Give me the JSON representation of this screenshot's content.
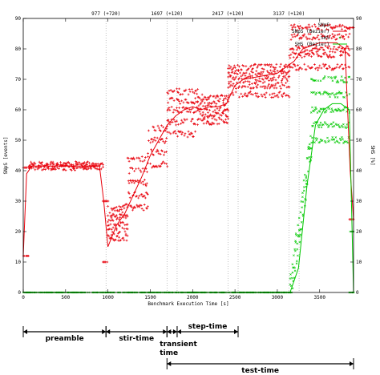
{
  "chart_data": {
    "type": "scatter",
    "title": "",
    "xlabel": "Benchmark Execution Time [s]",
    "ylabel": "SNpS [events]",
    "y2label": "SHS [%]",
    "xlim": [
      0,
      3900
    ],
    "ylim": [
      0,
      90
    ],
    "y2lim": [
      0,
      90
    ],
    "xticks": [
      0,
      500,
      1000,
      1500,
      2000,
      2500,
      3000,
      3500
    ],
    "yticks": [
      0,
      10,
      20,
      30,
      40,
      50,
      60,
      70,
      80,
      90
    ],
    "y2ticks": [
      0,
      10,
      20,
      30,
      40,
      50,
      60,
      70,
      80,
      90
    ],
    "grid": false,
    "legend_position": "top-right",
    "vertical_markers": [
      {
        "x": 977,
        "label": "977 (+720)"
      },
      {
        "x": 1697,
        "label": "1697 (+120)"
      },
      {
        "x": 2417,
        "label": "2417 (+120)"
      },
      {
        "x": 3137,
        "label": "3137 (+120)"
      }
    ],
    "series": [
      {
        "name": "SNpS",
        "color": "#e8000b",
        "marker": "plus",
        "segments": [
          {
            "x_start": 0,
            "x_end": 60,
            "levels": [
              12,
              41
            ]
          },
          {
            "x_start": 60,
            "x_end": 940,
            "levels": [
              41,
              41.5,
              42
            ]
          },
          {
            "x_start": 940,
            "x_end": 1000,
            "levels": [
              10,
              30
            ]
          },
          {
            "x_start": 1000,
            "x_end": 1230,
            "levels": [
              18,
              20,
              22,
              24,
              26,
              28
            ]
          },
          {
            "x_start": 1230,
            "x_end": 1470,
            "levels": [
              28,
              32,
              36,
              40,
              44
            ]
          },
          {
            "x_start": 1470,
            "x_end": 1700,
            "levels": [
              42,
              46,
              50,
              54
            ]
          },
          {
            "x_start": 1700,
            "x_end": 2060,
            "levels": [
              52,
              56,
              60,
              63,
              66
            ]
          },
          {
            "x_start": 2060,
            "x_end": 2420,
            "levels": [
              56,
              58,
              60,
              62,
              64
            ]
          },
          {
            "x_start": 2420,
            "x_end": 3140,
            "levels": [
              65,
              68,
              70,
              72,
              74
            ]
          },
          {
            "x_start": 3140,
            "x_end": 3850,
            "levels": [
              74,
              78,
              80,
              84,
              87
            ]
          },
          {
            "x_start": 3850,
            "x_end": 3900,
            "levels": [
              24,
              87
            ]
          }
        ]
      },
      {
        "name": "SNpS (Bezier)",
        "color": "#e8000b",
        "marker": "line",
        "x": [
          0,
          40,
          100,
          900,
          950,
          1000,
          1100,
          1200,
          1300,
          1400,
          1500,
          1600,
          1700,
          1800,
          1900,
          2000,
          2100,
          2200,
          2300,
          2400,
          2500,
          2600,
          2800,
          3000,
          3100,
          3200,
          3300,
          3500,
          3700,
          3800,
          3860,
          3900
        ],
        "y": [
          12,
          39,
          41.5,
          41.5,
          30,
          15,
          22,
          26,
          32,
          38,
          45,
          50,
          55,
          58,
          60,
          61,
          60,
          61,
          61,
          62,
          68,
          70,
          71,
          72,
          74,
          76,
          80,
          82,
          82,
          80,
          40,
          24
        ]
      },
      {
        "name": "SHS",
        "color": "#00c800",
        "marker": "cross",
        "segments": [
          {
            "x_start": 0,
            "x_end": 3150,
            "levels": [
              0
            ]
          },
          {
            "x_start": 3150,
            "x_end": 3400,
            "ramp": [
              0,
              50
            ]
          },
          {
            "x_start": 3400,
            "x_end": 3850,
            "levels": [
              50,
              55,
              60,
              65,
              70
            ]
          },
          {
            "x_start": 3850,
            "x_end": 3900,
            "levels": [
              0,
              20
            ]
          }
        ]
      },
      {
        "name": "SHS (Bezier)",
        "color": "#00c800",
        "marker": "line",
        "x": [
          0,
          3150,
          3250,
          3350,
          3450,
          3550,
          3650,
          3750,
          3850,
          3900
        ],
        "y": [
          0,
          0,
          8,
          35,
          55,
          60,
          62,
          62,
          60,
          0
        ]
      }
    ]
  },
  "phases": [
    {
      "label": "preamble",
      "x_start": 0,
      "x_end": 977
    },
    {
      "label": "stir-time",
      "x_start": 977,
      "x_end": 1697
    },
    {
      "label": "transient time",
      "x_start": 1697,
      "x_end": 1817
    },
    {
      "label": "step-time",
      "x_start": 1817,
      "x_end": 2537
    },
    {
      "label": "test-time",
      "x_start": 1697,
      "x_end": 3900
    }
  ]
}
